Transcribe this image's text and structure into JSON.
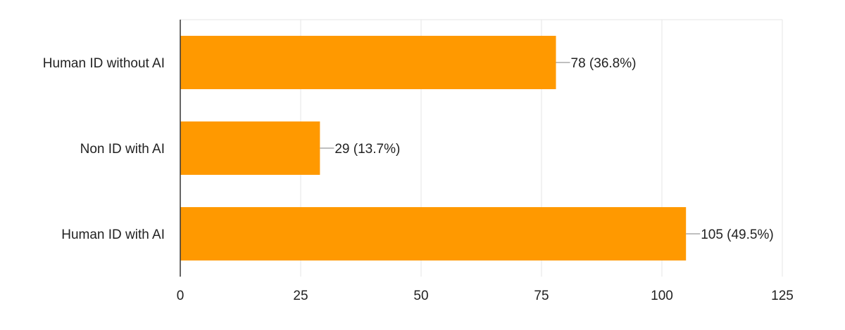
{
  "chart_data": {
    "type": "bar",
    "orientation": "horizontal",
    "categories": [
      "Human ID without AI",
      "Non ID with AI",
      "Human ID with AI"
    ],
    "values": [
      78,
      29,
      105
    ],
    "data_labels": [
      "78 (36.8%)",
      "29 (13.7%)",
      "105 (49.5%)"
    ],
    "x_ticks": [
      "0",
      "25",
      "50",
      "75",
      "100",
      "125"
    ],
    "xlim": [
      0,
      125
    ],
    "grid": "vertical",
    "legend": "none",
    "bar_color": "#ff9900",
    "title": "",
    "xlabel": "",
    "ylabel": ""
  }
}
